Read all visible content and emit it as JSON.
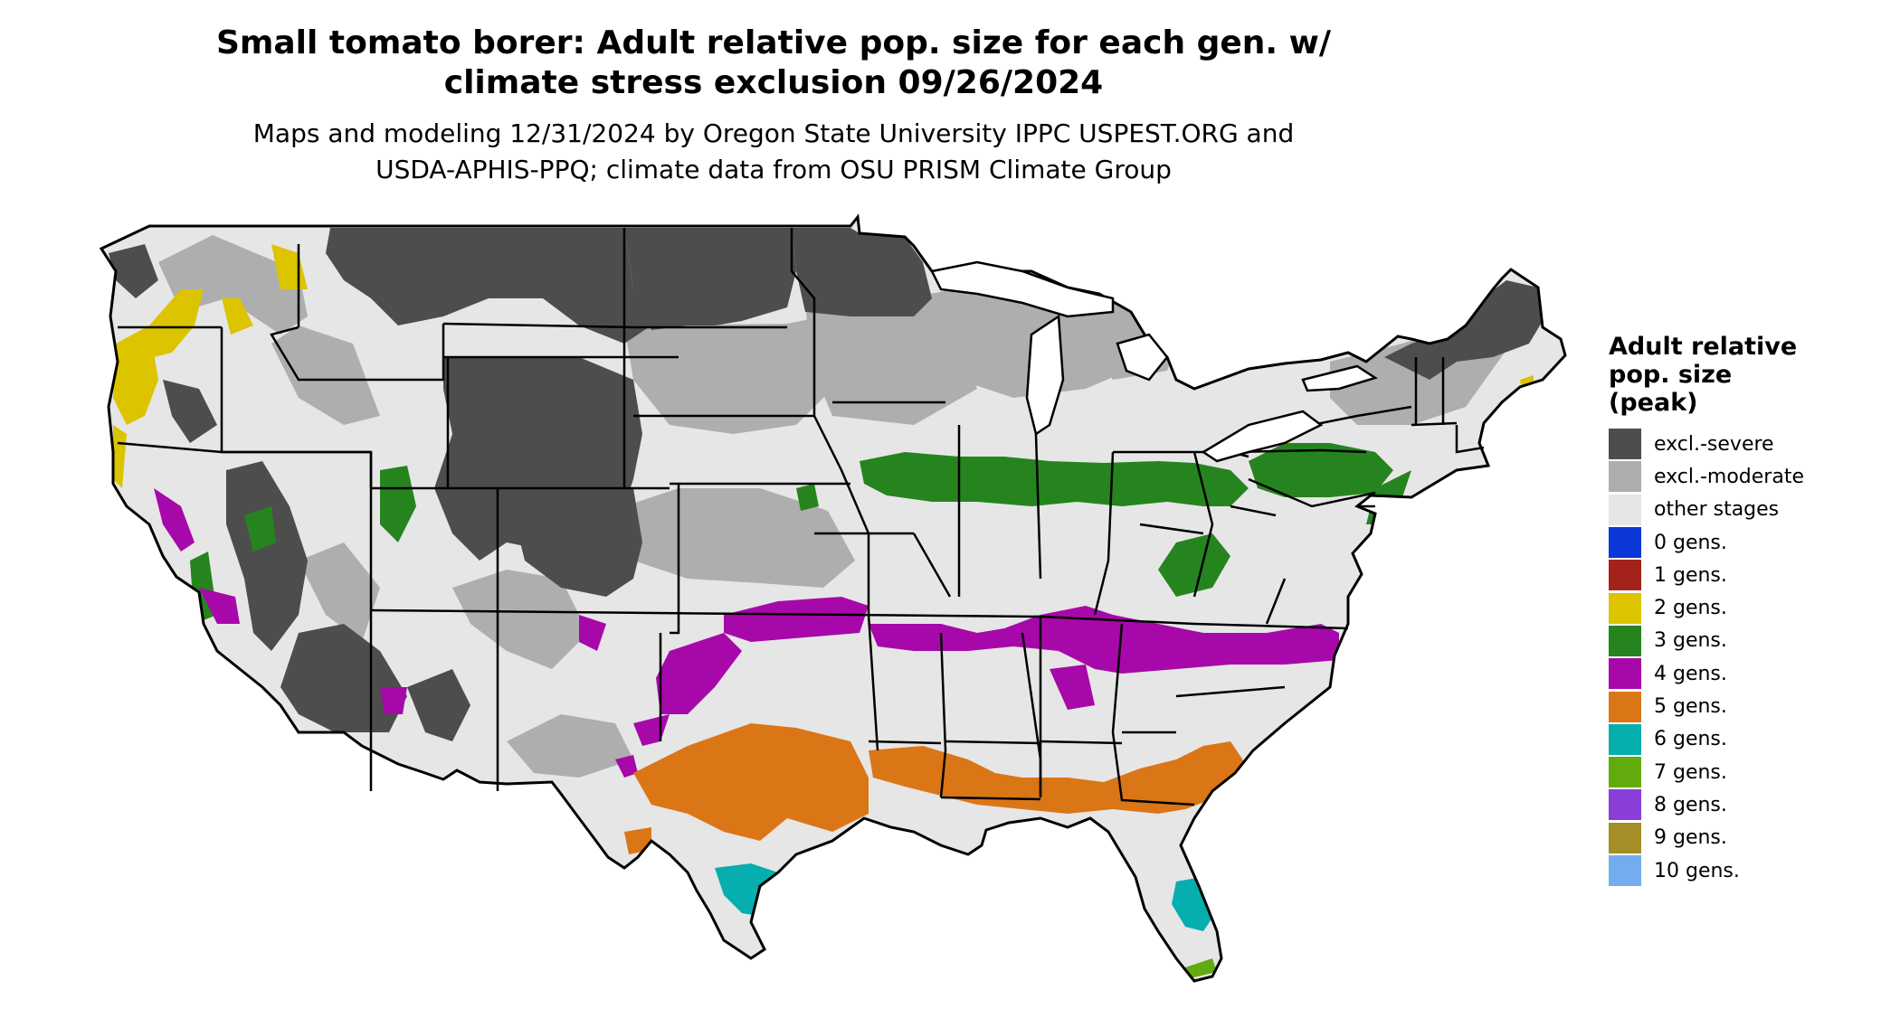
{
  "title": {
    "line1": "Small tomato borer: Adult relative pop. size for each gen. w/",
    "line2": "climate stress exclusion 09/26/2024"
  },
  "subtitle": {
    "line1": "Maps and modeling 12/31/2024 by Oregon State University IPPC USPEST.ORG and",
    "line2": "USDA-APHIS-PPQ; climate data from OSU PRISM Climate Group"
  },
  "legend": {
    "title_line1": "Adult relative",
    "title_line2": "pop. size",
    "title_line3": "(peak)",
    "items": [
      {
        "label": "excl.-severe",
        "color": "#4d4d4d"
      },
      {
        "label": "excl.-moderate",
        "color": "#aeaeae"
      },
      {
        "label": "other stages",
        "color": "#e6e6e6"
      },
      {
        "label": "0 gens.",
        "color": "#0b36d8"
      },
      {
        "label": "1 gens.",
        "color": "#a3231a"
      },
      {
        "label": "2 gens.",
        "color": "#dcc400"
      },
      {
        "label": "3 gens.",
        "color": "#26841f"
      },
      {
        "label": "4 gens.",
        "color": "#a708a9"
      },
      {
        "label": "5 gens.",
        "color": "#db7616"
      },
      {
        "label": "6 gens.",
        "color": "#06aeae"
      },
      {
        "label": "7 gens.",
        "color": "#62ab0f"
      },
      {
        "label": "8 gens.",
        "color": "#8a3fd9"
      },
      {
        "label": "9 gens.",
        "color": "#a38f25"
      },
      {
        "label": "10 gens.",
        "color": "#73adf0"
      }
    ]
  }
}
